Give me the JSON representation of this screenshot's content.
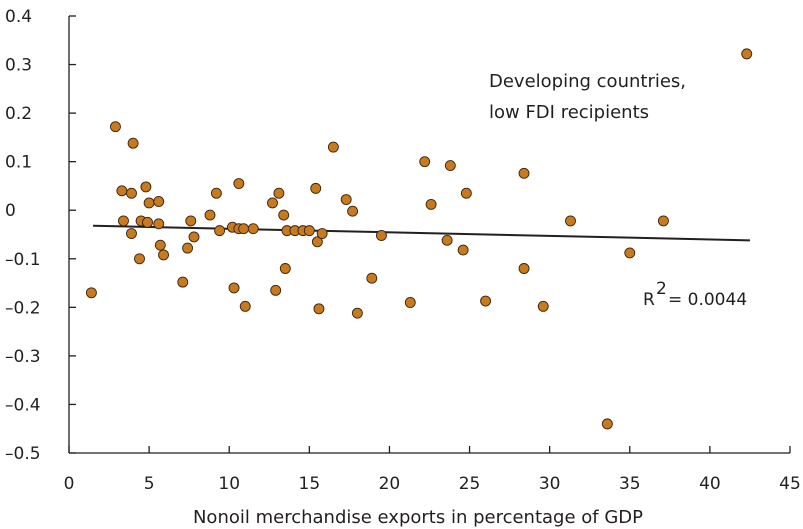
{
  "chart_data": {
    "type": "scatter",
    "title": "",
    "xlabel": "Nonoil merchandise exports in percentage of GDP",
    "ylabel": "",
    "xlim": [
      0,
      45
    ],
    "ylim": [
      -0.5,
      0.4
    ],
    "xticks": [
      0,
      5,
      10,
      15,
      20,
      25,
      30,
      35,
      40,
      45
    ],
    "yticks": [
      0.4,
      0.3,
      0.2,
      0.1,
      0,
      -0.1,
      -0.2,
      -0.3,
      -0.4,
      -0.5
    ],
    "ytick_labels": [
      "0.4",
      "0.3",
      "0.2",
      "0.1",
      "0",
      "–0.1",
      "–0.2",
      "–0.3",
      "–0.4",
      "–0.5"
    ],
    "grid": false,
    "annotation": [
      "Developing countries,",
      "low FDI recipients"
    ],
    "r_squared": {
      "label": "R",
      "superscript": "2",
      "value_text": "= 0.0044"
    },
    "trendline": {
      "x": [
        1.5,
        42.5
      ],
      "y": [
        -0.032,
        -0.062
      ]
    },
    "marker_color": "#c87a1e",
    "marker_edge": "#3a2410",
    "points": [
      {
        "x": 1.4,
        "y": -0.17
      },
      {
        "x": 2.9,
        "y": 0.172
      },
      {
        "x": 3.3,
        "y": 0.04
      },
      {
        "x": 3.4,
        "y": -0.022
      },
      {
        "x": 3.9,
        "y": 0.035
      },
      {
        "x": 3.9,
        "y": -0.048
      },
      {
        "x": 4.0,
        "y": 0.138
      },
      {
        "x": 4.4,
        "y": -0.1
      },
      {
        "x": 4.5,
        "y": -0.022
      },
      {
        "x": 4.8,
        "y": 0.048
      },
      {
        "x": 4.9,
        "y": -0.025
      },
      {
        "x": 5.0,
        "y": 0.015
      },
      {
        "x": 5.6,
        "y": 0.018
      },
      {
        "x": 5.6,
        "y": -0.028
      },
      {
        "x": 5.7,
        "y": -0.072
      },
      {
        "x": 5.9,
        "y": -0.092
      },
      {
        "x": 7.1,
        "y": -0.148
      },
      {
        "x": 7.4,
        "y": -0.078
      },
      {
        "x": 7.6,
        "y": -0.022
      },
      {
        "x": 7.8,
        "y": -0.055
      },
      {
        "x": 8.8,
        "y": -0.01
      },
      {
        "x": 9.2,
        "y": 0.035
      },
      {
        "x": 9.4,
        "y": -0.042
      },
      {
        "x": 10.2,
        "y": -0.035
      },
      {
        "x": 10.3,
        "y": -0.16
      },
      {
        "x": 10.6,
        "y": 0.055
      },
      {
        "x": 10.6,
        "y": -0.038
      },
      {
        "x": 10.9,
        "y": -0.038
      },
      {
        "x": 11.0,
        "y": -0.198
      },
      {
        "x": 11.5,
        "y": -0.038
      },
      {
        "x": 12.7,
        "y": 0.015
      },
      {
        "x": 12.9,
        "y": -0.165
      },
      {
        "x": 13.1,
        "y": 0.035
      },
      {
        "x": 13.4,
        "y": -0.01
      },
      {
        "x": 13.5,
        "y": -0.12
      },
      {
        "x": 13.6,
        "y": -0.042
      },
      {
        "x": 14.1,
        "y": -0.042
      },
      {
        "x": 14.6,
        "y": -0.042
      },
      {
        "x": 15.0,
        "y": -0.042
      },
      {
        "x": 15.4,
        "y": 0.045
      },
      {
        "x": 15.5,
        "y": -0.065
      },
      {
        "x": 15.6,
        "y": -0.203
      },
      {
        "x": 15.8,
        "y": -0.048
      },
      {
        "x": 16.5,
        "y": 0.13
      },
      {
        "x": 17.3,
        "y": 0.022
      },
      {
        "x": 17.7,
        "y": -0.002
      },
      {
        "x": 18.0,
        "y": -0.212
      },
      {
        "x": 18.9,
        "y": -0.14
      },
      {
        "x": 19.5,
        "y": -0.052
      },
      {
        "x": 21.3,
        "y": -0.19
      },
      {
        "x": 22.2,
        "y": 0.1
      },
      {
        "x": 22.6,
        "y": 0.012
      },
      {
        "x": 23.6,
        "y": -0.062
      },
      {
        "x": 23.8,
        "y": 0.092
      },
      {
        "x": 24.6,
        "y": -0.082
      },
      {
        "x": 24.8,
        "y": 0.035
      },
      {
        "x": 26.0,
        "y": -0.187
      },
      {
        "x": 28.4,
        "y": -0.12
      },
      {
        "x": 28.4,
        "y": 0.076
      },
      {
        "x": 29.6,
        "y": -0.198
      },
      {
        "x": 31.3,
        "y": -0.022
      },
      {
        "x": 33.6,
        "y": -0.44
      },
      {
        "x": 35.0,
        "y": -0.088
      },
      {
        "x": 37.1,
        "y": -0.022
      },
      {
        "x": 42.3,
        "y": 0.322
      }
    ]
  }
}
